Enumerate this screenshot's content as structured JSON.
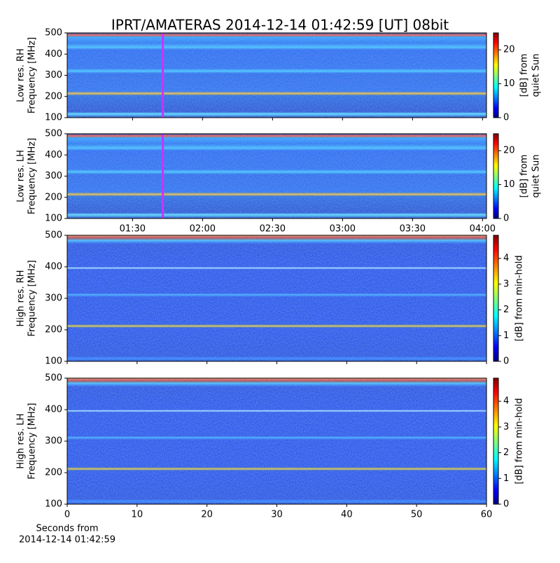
{
  "title": "IPRT/AMATERAS 2014-12-14 01:42:59 [UT]   08bit",
  "chart_data": [
    {
      "type": "spectrogram",
      "ylabel": [
        "Low res. RH",
        "Frequency [MHz]"
      ],
      "xlim": [
        62,
        241.7
      ],
      "marker_x": 102.98,
      "marker_color": "#cc33ff",
      "ylim": [
        100,
        500
      ],
      "yticks": [
        100,
        200,
        300,
        400,
        500
      ],
      "colorbar": {
        "label": [
          "[dB] from",
          "quiet Sun"
        ],
        "lim": [
          0,
          25
        ],
        "ticks": [
          0,
          10,
          20
        ]
      }
    },
    {
      "type": "spectrogram",
      "ylabel": [
        "Low res. LH",
        "Frequency [MHz]"
      ],
      "xlim": [
        62,
        241.7
      ],
      "marker_x": 102.98,
      "marker_color": "#cc33ff",
      "xticks": [
        {
          "value": 90,
          "label": "01:30"
        },
        {
          "value": 120,
          "label": "02:00"
        },
        {
          "value": 150,
          "label": "02:30"
        },
        {
          "value": 180,
          "label": "03:00"
        },
        {
          "value": 210,
          "label": "03:30"
        },
        {
          "value": 240,
          "label": "04:00"
        }
      ],
      "ylim": [
        100,
        500
      ],
      "yticks": [
        100,
        200,
        300,
        400,
        500
      ],
      "colorbar": {
        "label": [
          "[dB] from",
          "quiet Sun"
        ],
        "lim": [
          0,
          25
        ],
        "ticks": [
          0,
          10,
          20
        ]
      }
    },
    {
      "type": "spectrogram",
      "ylabel": [
        "High res. RH",
        "Frequency [MHz]"
      ],
      "xlim": [
        0,
        60
      ],
      "ylim": [
        100,
        500
      ],
      "yticks": [
        100,
        200,
        300,
        400,
        500
      ],
      "colorbar": {
        "label": [
          "[dB] from min-hold"
        ],
        "lim": [
          0,
          4.9
        ],
        "ticks": [
          0,
          1,
          2,
          3,
          4
        ]
      }
    },
    {
      "type": "spectrogram",
      "ylabel": [
        "High res. LH",
        "Frequency [MHz]"
      ],
      "xlabel": [
        "Seconds from",
        "2014-12-14 01:42:59"
      ],
      "xlim": [
        0,
        60
      ],
      "xticks": [
        0,
        10,
        20,
        30,
        40,
        50,
        60
      ],
      "ylim": [
        100,
        500
      ],
      "yticks": [
        100,
        200,
        300,
        400,
        500
      ],
      "colorbar": {
        "label": [
          "[dB] from min-hold"
        ],
        "lim": [
          0,
          4.9
        ],
        "ticks": [
          0,
          1,
          2,
          3,
          4
        ]
      }
    }
  ]
}
